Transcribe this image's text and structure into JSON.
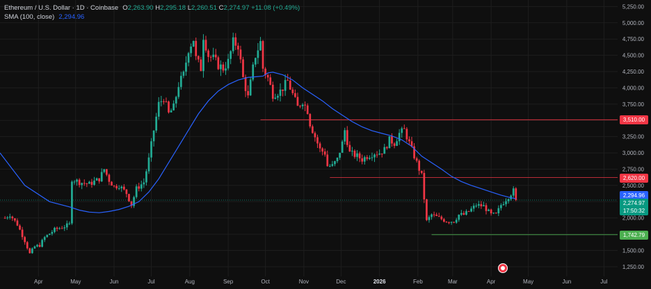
{
  "legend": {
    "symbol": "Ethereum / U.S. Dollar · 1D · Coinbase",
    "ohlc": {
      "o_label": "O",
      "o": "2,263.90",
      "h_label": "H",
      "h": "2,295.18",
      "l_label": "L",
      "l": "2,260.51",
      "c_label": "C",
      "c": "2,274.97",
      "change": "+11.08 (+0.49%)"
    },
    "sma_label": "SMA (100, close)",
    "sma_value": "2,294.96"
  },
  "price_tags": [
    {
      "name": "level-3510-tag",
      "text": "3,510.00",
      "price": 3510,
      "color": "#f23645"
    },
    {
      "name": "level-2620-tag",
      "text": "2,620.00",
      "price": 2620,
      "color": "#f23645"
    },
    {
      "name": "sma-tag",
      "text": "2,294.96",
      "price": 2294.96,
      "color": "#2962ff"
    },
    {
      "name": "last-price-tag",
      "text": "2,274.97",
      "sub": "17:50:32",
      "price": 2274.97,
      "color": "#089981"
    },
    {
      "name": "level-1742-tag",
      "text": "1,742.79",
      "price": 1742.79,
      "color": "#4caf50"
    }
  ],
  "colors": {
    "up": "#22ab94",
    "down": "#f23645",
    "sma": "#2962ff",
    "level": "#f23645",
    "grid": "#1e1e1e",
    "bg": "#0f0f0f"
  },
  "chart_data": {
    "type": "candlestick",
    "y_axis": {
      "min": 1100,
      "max": 5350,
      "ticks": [
        1250,
        1500,
        1750,
        2000,
        2250,
        2500,
        2750,
        3000,
        3250,
        3500,
        3750,
        4000,
        4250,
        4500,
        4750,
        5000,
        5250
      ],
      "tick_labels": [
        "1,250.00",
        "1,500.00",
        "1,750.00",
        "2,000.00",
        "2,250.00",
        "2,500.00",
        "2,750.00",
        "3,000.00",
        "3,250.00",
        "3,500.00",
        "3,750.00",
        "4,000.00",
        "4,250.00",
        "4,500.00",
        "4,750.00",
        "5,000.00",
        "5,250.00"
      ]
    },
    "x_axis": {
      "labels": [
        "Apr",
        "May",
        "Jun",
        "Jul",
        "Aug",
        "Sep",
        "Oct",
        "Nov",
        "Dec",
        "2026",
        "Feb",
        "Mar",
        "Apr",
        "May",
        "Jun",
        "Jul"
      ],
      "label_day": [
        31,
        61,
        92,
        122,
        153,
        184,
        214,
        245,
        275,
        306,
        337,
        365,
        396,
        426,
        457,
        487
      ],
      "bold": [
        "2026"
      ],
      "start_day": 0,
      "end_day": 498
    },
    "price_path": [
      [
        0,
        1950
      ],
      [
        8,
        2050
      ],
      [
        14,
        1900
      ],
      [
        20,
        1650
      ],
      [
        24,
        1450
      ],
      [
        28,
        1560
      ],
      [
        32,
        1580
      ],
      [
        36,
        1700
      ],
      [
        40,
        1760
      ],
      [
        44,
        1820
      ],
      [
        52,
        1870
      ],
      [
        56,
        1900
      ],
      [
        58,
        2600
      ],
      [
        64,
        2550
      ],
      [
        72,
        2520
      ],
      [
        80,
        2600
      ],
      [
        84,
        2750
      ],
      [
        88,
        2580
      ],
      [
        92,
        2480
      ],
      [
        96,
        2500
      ],
      [
        102,
        2380
      ],
      [
        106,
        2200
      ],
      [
        110,
        2450
      ],
      [
        116,
        2550
      ],
      [
        120,
        2900
      ],
      [
        124,
        3350
      ],
      [
        128,
        3750
      ],
      [
        132,
        3850
      ],
      [
        136,
        3600
      ],
      [
        140,
        3700
      ],
      [
        144,
        4050
      ],
      [
        148,
        4200
      ],
      [
        152,
        4600
      ],
      [
        156,
        4750
      ],
      [
        158,
        4450
      ],
      [
        162,
        4300
      ],
      [
        164,
        4800
      ],
      [
        168,
        4500
      ],
      [
        172,
        4450
      ],
      [
        176,
        4350
      ],
      [
        180,
        4300
      ],
      [
        184,
        4400
      ],
      [
        188,
        4700
      ],
      [
        192,
        4650
      ],
      [
        196,
        4150
      ],
      [
        200,
        3850
      ],
      [
        204,
        4300
      ],
      [
        206,
        4500
      ],
      [
        210,
        4700
      ],
      [
        212,
        4300
      ],
      [
        216,
        4150
      ],
      [
        220,
        3900
      ],
      [
        226,
        3950
      ],
      [
        232,
        4100
      ],
      [
        236,
        3900
      ],
      [
        240,
        3700
      ],
      [
        244,
        3800
      ],
      [
        248,
        3650
      ],
      [
        250,
        3450
      ],
      [
        254,
        3250
      ],
      [
        258,
        3050
      ],
      [
        262,
        3000
      ],
      [
        264,
        2800
      ],
      [
        268,
        2800
      ],
      [
        272,
        2900
      ],
      [
        276,
        3150
      ],
      [
        278,
        3350
      ],
      [
        282,
        3000
      ],
      [
        288,
        2950
      ],
      [
        292,
        2900
      ],
      [
        296,
        2950
      ],
      [
        302,
        3000
      ],
      [
        306,
        3000
      ],
      [
        310,
        3050
      ],
      [
        314,
        3200
      ],
      [
        318,
        3150
      ],
      [
        322,
        3300
      ],
      [
        326,
        3350
      ],
      [
        330,
        3150
      ],
      [
        336,
        2850
      ],
      [
        340,
        2650
      ],
      [
        342,
        2300
      ],
      [
        344,
        1950
      ],
      [
        348,
        2050
      ],
      [
        354,
        2000
      ],
      [
        360,
        1950
      ],
      [
        366,
        1950
      ],
      [
        370,
        2050
      ],
      [
        374,
        2050
      ],
      [
        378,
        2100
      ],
      [
        384,
        2200
      ],
      [
        390,
        2180
      ],
      [
        396,
        2050
      ],
      [
        400,
        2050
      ],
      [
        404,
        2200
      ],
      [
        410,
        2330
      ],
      [
        414,
        2420
      ],
      [
        416,
        2275
      ]
    ],
    "candles": {
      "start_day": 4,
      "end_day": 416,
      "step": 2
    },
    "sma": [
      [
        0,
        3000
      ],
      [
        20,
        2500
      ],
      [
        40,
        2250
      ],
      [
        56,
        2170
      ],
      [
        64,
        2120
      ],
      [
        72,
        2090
      ],
      [
        80,
        2080
      ],
      [
        88,
        2100
      ],
      [
        96,
        2130
      ],
      [
        104,
        2180
      ],
      [
        112,
        2250
      ],
      [
        120,
        2400
      ],
      [
        128,
        2600
      ],
      [
        136,
        2850
      ],
      [
        144,
        3100
      ],
      [
        152,
        3350
      ],
      [
        160,
        3600
      ],
      [
        168,
        3800
      ],
      [
        176,
        3950
      ],
      [
        184,
        4050
      ],
      [
        192,
        4120
      ],
      [
        200,
        4160
      ],
      [
        206,
        4170
      ],
      [
        212,
        4180
      ],
      [
        216,
        4230
      ],
      [
        220,
        4240
      ],
      [
        228,
        4200
      ],
      [
        236,
        4120
      ],
      [
        244,
        4000
      ],
      [
        252,
        3900
      ],
      [
        260,
        3800
      ],
      [
        268,
        3680
      ],
      [
        276,
        3580
      ],
      [
        284,
        3480
      ],
      [
        292,
        3400
      ],
      [
        300,
        3340
      ],
      [
        308,
        3300
      ],
      [
        316,
        3260
      ],
      [
        324,
        3200
      ],
      [
        332,
        3100
      ],
      [
        340,
        2950
      ],
      [
        348,
        2850
      ],
      [
        356,
        2750
      ],
      [
        364,
        2640
      ],
      [
        372,
        2560
      ],
      [
        380,
        2500
      ],
      [
        388,
        2450
      ],
      [
        396,
        2400
      ],
      [
        404,
        2350
      ],
      [
        412,
        2310
      ],
      [
        416,
        2295
      ]
    ],
    "horizontal_levels": [
      {
        "price": 3510,
        "from_day": 210
      },
      {
        "price": 2620,
        "from_day": 266
      },
      {
        "price": 1742.79,
        "from_day": 348
      }
    ],
    "last_price": 2274.97,
    "sma_last": 2294.96
  }
}
